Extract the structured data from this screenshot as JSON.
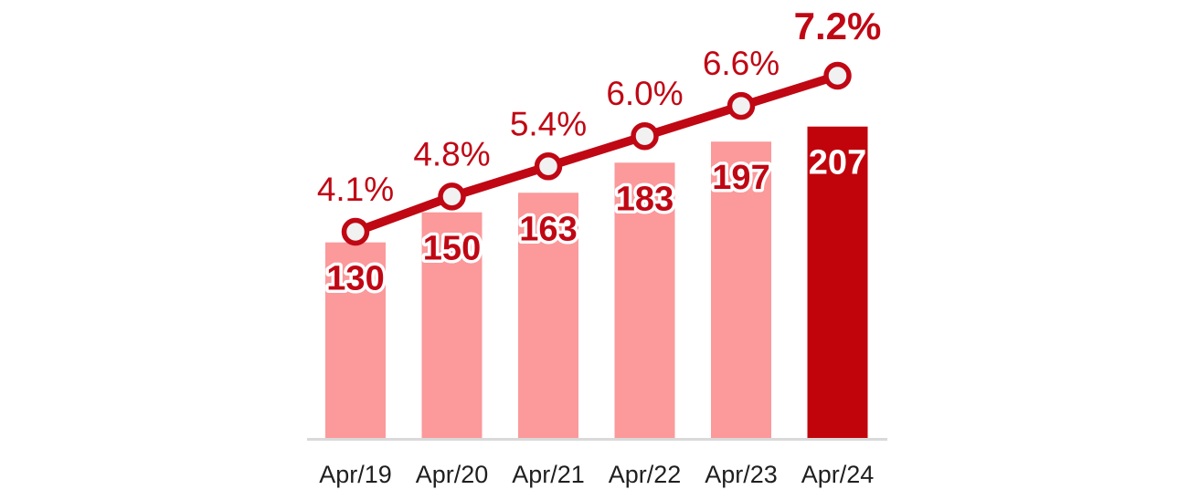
{
  "chart_data": {
    "type": "bar",
    "subtype": "bar-line-combo",
    "title": "",
    "xlabel": "",
    "ylabel": "",
    "legend": "none",
    "grid": "off",
    "y_axis_visible": false,
    "categories": [
      "Apr/19",
      "Apr/20",
      "Apr/21",
      "Apr/22",
      "Apr/23",
      "Apr/24"
    ],
    "series": [
      {
        "name": "bar-values",
        "type": "bar",
        "values": [
          130,
          150,
          163,
          183,
          197,
          207
        ],
        "labels": [
          "130",
          "150",
          "163",
          "183",
          "197",
          "207"
        ]
      },
      {
        "name": "growth-percent-line",
        "type": "line",
        "values": [
          4.1,
          4.8,
          5.4,
          6.0,
          6.6,
          7.2
        ],
        "labels": [
          "4.1%",
          "4.8%",
          "5.4%",
          "6.0%",
          "6.6%",
          "7.2%"
        ]
      }
    ],
    "highlight_index": 5,
    "bar_ylim": [
      0,
      291
    ],
    "line_ylim_percent": [
      0,
      8.7
    ]
  },
  "colors": {
    "background": "#FFFFFF",
    "bar": "#FB999B",
    "bar_highlight": "#C1040C",
    "line": "#C00714",
    "marker_fill": "#F1F1F1",
    "marker_stroke": "#C00714",
    "value_label": "#C00714",
    "value_label_highlight": "#FFFFFF",
    "value_label_outline": "#FFFFFF",
    "percent_label": "#C00714",
    "axis_line": "#D9D9D9",
    "axis_text": "#1F1F1F"
  }
}
